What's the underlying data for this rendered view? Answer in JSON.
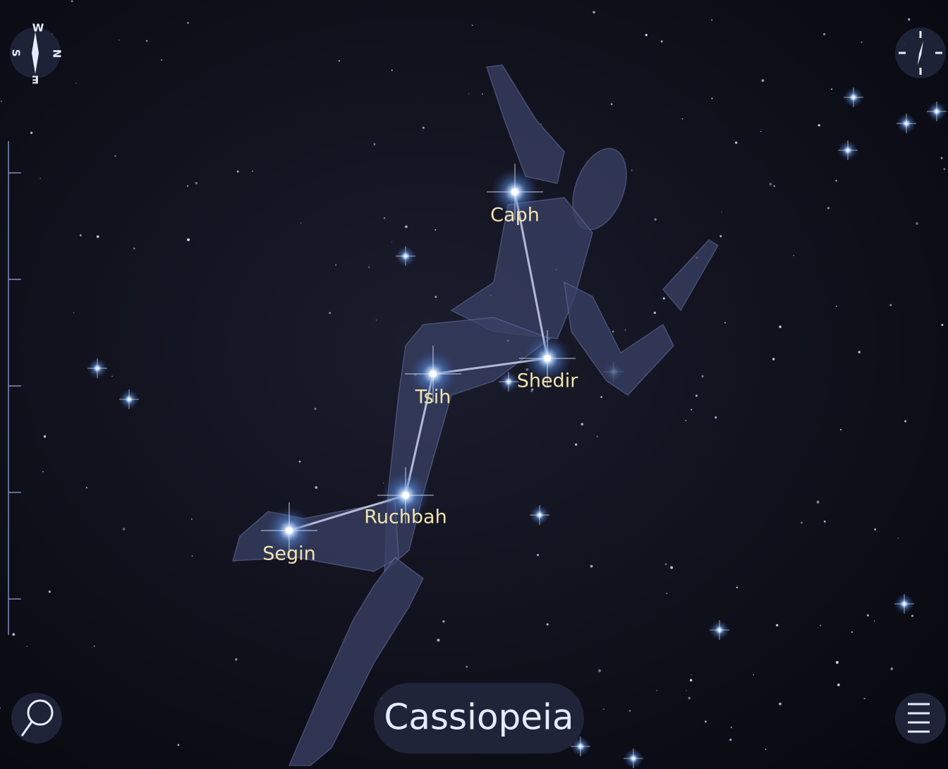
{
  "compass": {
    "west": "W",
    "north": "N",
    "east": "E",
    "south": "S"
  },
  "stars": [
    "Caph",
    "Shedir",
    "Tsih",
    "Ruchbah",
    "Segin"
  ],
  "constellation": {
    "name": "Cassiopeia"
  }
}
